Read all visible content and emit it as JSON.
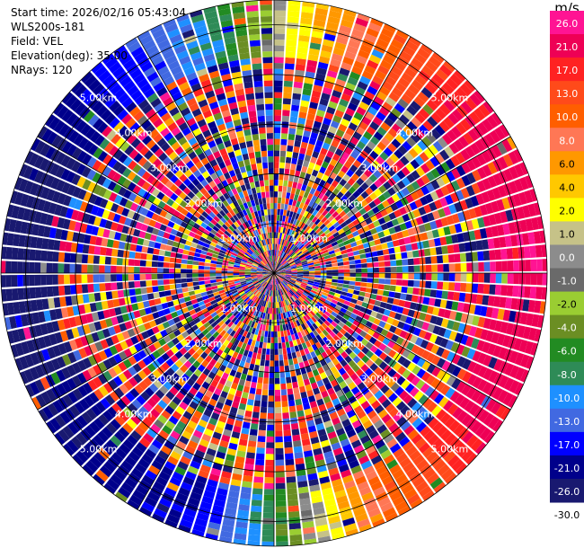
{
  "info": {
    "start_time": "Start time: 2026/02/16 05:43:04",
    "instrument": "WLS200s-181",
    "field": "Field: VEL",
    "elevation": "Elevation(deg): 35.00",
    "nrays": "NRays: 120"
  },
  "colorbar": {
    "unit": "m/s",
    "entries": [
      {
        "label": "26.0",
        "color": "#ff1493"
      },
      {
        "label": "21.0",
        "color": "#ee0055"
      },
      {
        "label": "17.0",
        "color": "#ff2222"
      },
      {
        "label": "13.0",
        "color": "#ff4a1a"
      },
      {
        "label": "10.0",
        "color": "#ff5e00"
      },
      {
        "label": "8.0",
        "color": "#ff7755"
      },
      {
        "label": "6.0",
        "color": "#ff9800"
      },
      {
        "label": "4.0",
        "color": "#ffc800"
      },
      {
        "label": "2.0",
        "color": "#ffff00"
      },
      {
        "label": "1.0",
        "color": "#c6c288"
      },
      {
        "label": "0.0",
        "color": "#8c8c8c"
      },
      {
        "label": "-1.0",
        "color": "#6a6a6a"
      },
      {
        "label": "-2.0",
        "color": "#9acd32"
      },
      {
        "label": "-4.0",
        "color": "#6b8e23"
      },
      {
        "label": "-6.0",
        "color": "#228b22"
      },
      {
        "label": "-8.0",
        "color": "#2e8b57"
      },
      {
        "label": "-10.0",
        "color": "#1e90ff"
      },
      {
        "label": "-13.0",
        "color": "#4169e1"
      },
      {
        "label": "-17.0",
        "color": "#0000ff"
      },
      {
        "label": "-21.0",
        "color": "#00008b"
      },
      {
        "label": "-26.0",
        "color": "#191970"
      },
      {
        "label": "-30.0",
        "color": ""
      }
    ]
  },
  "chart_data": {
    "type": "heatmap",
    "projection": "polar-ppi",
    "field": "VEL",
    "n_rays": 120,
    "max_range_km": 5.5,
    "ring_labels": [
      "1.00km",
      "2.00km",
      "3.00km",
      "4.00km",
      "5.00km"
    ],
    "ring_km": [
      1,
      2,
      3,
      4,
      5
    ],
    "azimuth_lines_deg": [
      0,
      30,
      60,
      90,
      120,
      150,
      180,
      210,
      240,
      270,
      300,
      330
    ],
    "clean_range_km": 4.3,
    "mean_velocity_by_azimuth": [
      {
        "azimuth_deg": 0,
        "value": 0.0
      },
      {
        "azimuth_deg": 20,
        "value": 10.0
      },
      {
        "azimuth_deg": 50,
        "value": 21.0
      },
      {
        "azimuth_deg": 90,
        "value": 26.0
      },
      {
        "azimuth_deg": 130,
        "value": 21.0
      },
      {
        "azimuth_deg": 160,
        "value": 8.0
      },
      {
        "azimuth_deg": 180,
        "value": -6.0
      },
      {
        "azimuth_deg": 200,
        "value": -17.0
      },
      {
        "azimuth_deg": 240,
        "value": -21.0
      },
      {
        "azimuth_deg": 270,
        "value": -26.0
      },
      {
        "azimuth_deg": 300,
        "value": -21.0
      },
      {
        "azimuth_deg": 330,
        "value": -13.0
      },
      {
        "azimuth_deg": 350,
        "value": -6.0
      },
      {
        "azimuth_deg": 360,
        "value": 0.0
      }
    ]
  }
}
